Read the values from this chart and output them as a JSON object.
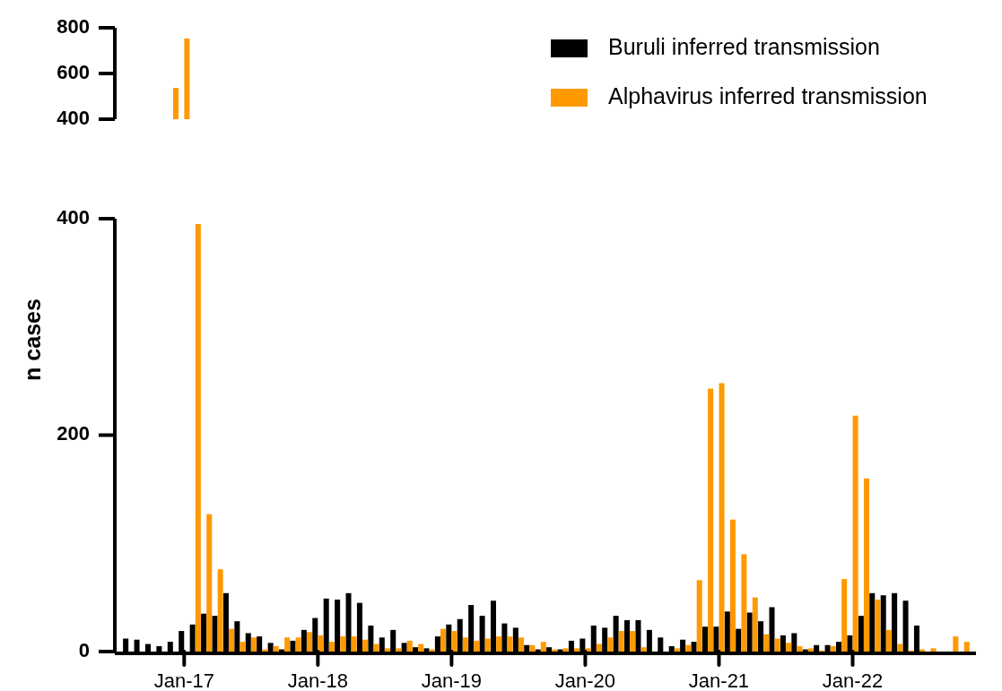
{
  "chart_data": [
    {
      "type": "bar",
      "categories": [
        null,
        null
      ],
      "series": [
        {
          "color": "#ff9900",
          "values": [
            537,
            753
          ]
        }
      ],
      "ylim": [
        400,
        800
      ],
      "yticks": [
        400,
        600,
        800
      ],
      "tick_labels": "y"
    },
    {
      "type": "bar",
      "ylabel": "n cases",
      "categories": [
        null,
        null,
        null,
        null,
        null,
        "Jan-17",
        null,
        null,
        null,
        null,
        null,
        null,
        null,
        null,
        null,
        null,
        null,
        "Jan-18",
        null,
        null,
        null,
        null,
        null,
        null,
        null,
        null,
        null,
        null,
        null,
        "Jan-19",
        null,
        null,
        null,
        null,
        null,
        null,
        null,
        null,
        null,
        null,
        null,
        "Jan-20",
        null,
        null,
        null,
        null,
        null,
        null,
        null,
        null,
        null,
        null,
        null,
        "Jan-21",
        null,
        null,
        null,
        null,
        null,
        null,
        null,
        null,
        null,
        null,
        null,
        "Jan-22",
        null,
        null,
        null,
        null,
        null,
        null,
        null,
        null,
        null,
        null
      ],
      "series": [
        {
          "name": "Buruli inferred transmission",
          "color": "#000000",
          "values": [
            12,
            11,
            7,
            5,
            9,
            19,
            25,
            35,
            33,
            54,
            28,
            17,
            14,
            8,
            2,
            10,
            20,
            31,
            49,
            48,
            54,
            45,
            24,
            13,
            20,
            8,
            4,
            3,
            14,
            25,
            30,
            43,
            33,
            47,
            26,
            22,
            6,
            2,
            4,
            2,
            10,
            12,
            24,
            22,
            33,
            29,
            29,
            20,
            13,
            5,
            11,
            9,
            23,
            23,
            37,
            21,
            36,
            28,
            41,
            15,
            17,
            2,
            6,
            6,
            9,
            15,
            33,
            54,
            52,
            54,
            47,
            24,
            0,
            0,
            0,
            0
          ]
        },
        {
          "name": "Alphavirus inferred transmission",
          "color": "#ff9900",
          "values": [
            0,
            0,
            0,
            0,
            null,
            null,
            395,
            127,
            76,
            21,
            9,
            13,
            2,
            5,
            13,
            13,
            18,
            15,
            9,
            14,
            14,
            11,
            7,
            3,
            3,
            10,
            7,
            2,
            21,
            19,
            13,
            10,
            12,
            14,
            14,
            13,
            6,
            9,
            2,
            3,
            3,
            3,
            7,
            13,
            19,
            19,
            4,
            0,
            0,
            3,
            6,
            66,
            243,
            248,
            122,
            90,
            50,
            16,
            12,
            8,
            5,
            3,
            1,
            5,
            67,
            218,
            160,
            48,
            20,
            7,
            1,
            2,
            3,
            0,
            14,
            9
          ]
        }
      ],
      "ylim": [
        0,
        400
      ],
      "yticks": [
        0,
        200,
        400
      ],
      "legend": "top right"
    }
  ]
}
